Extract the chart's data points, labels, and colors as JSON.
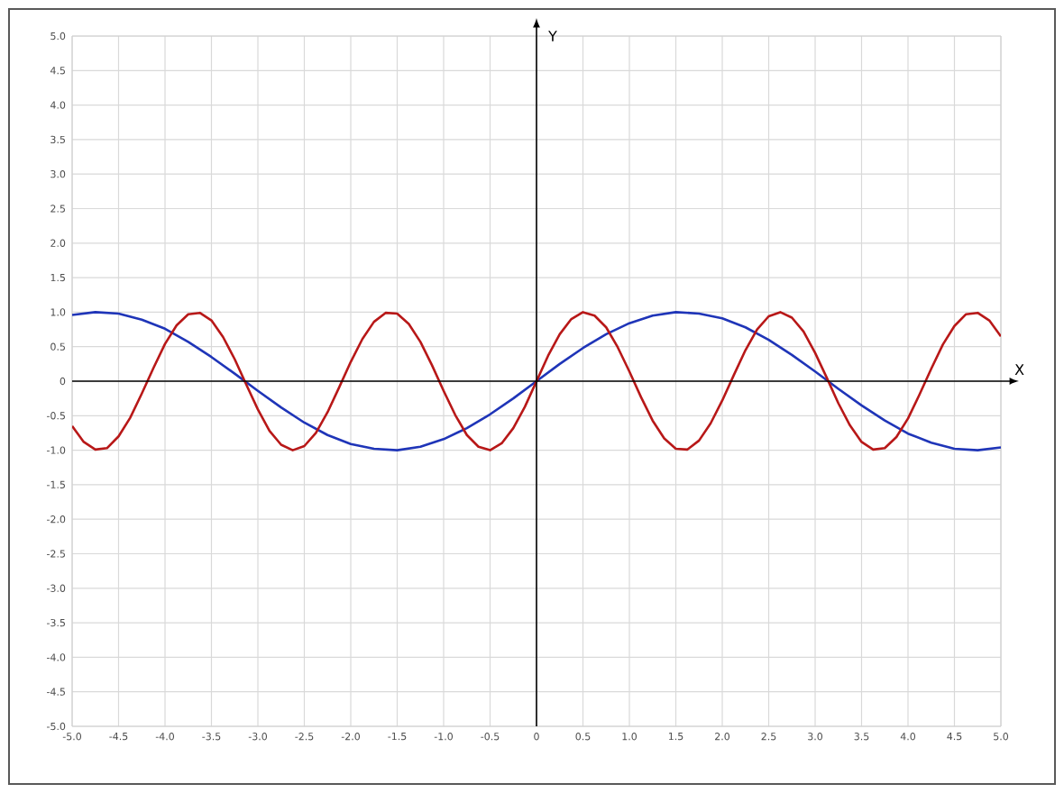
{
  "chart_data": {
    "type": "line",
    "xlabel": "X",
    "ylabel": "Y",
    "grid": true,
    "xlim": [
      -5,
      5
    ],
    "ylim": [
      -5,
      5
    ],
    "xticks": [
      {
        "value": -5,
        "label": "-5.0"
      },
      -4.5,
      {
        "value": -4,
        "label": "-4.0"
      },
      -3.5,
      {
        "value": -3,
        "label": "-3.0"
      },
      -2.5,
      {
        "value": -2,
        "label": "-2.0"
      },
      -1.5,
      {
        "value": -1,
        "label": "-1.0"
      },
      -0.5,
      0,
      0.5,
      {
        "value": 1,
        "label": "1.0"
      },
      1.5,
      {
        "value": 2,
        "label": "2.0"
      },
      2.5,
      {
        "value": 3,
        "label": "3.0"
      },
      3.5,
      {
        "value": 4,
        "label": "4.0"
      },
      4.5,
      {
        "value": 5,
        "label": "5.0"
      }
    ],
    "yticks": [
      {
        "value": -5,
        "label": "-5.0"
      },
      -4.5,
      {
        "value": -4,
        "label": "-4.0"
      },
      -3.5,
      {
        "value": -3,
        "label": "-3.0"
      },
      -2.5,
      {
        "value": -2,
        "label": "-2.0"
      },
      -1.5,
      {
        "value": -1,
        "label": "-1.0"
      },
      -0.5,
      0,
      0.5,
      {
        "value": 1,
        "label": "1.0"
      },
      1.5,
      {
        "value": 2,
        "label": "2.0"
      },
      2.5,
      {
        "value": 3,
        "label": "3.0"
      },
      3.5,
      {
        "value": 4,
        "label": "4.0"
      },
      4.5,
      {
        "value": 5,
        "label": "5.0"
      }
    ],
    "series": [
      {
        "color": "#1f35b8",
        "x": [
          -5,
          -4.75,
          -4.5,
          -4.25,
          -4,
          -3.75,
          -3.5,
          -3.25,
          -3,
          -2.75,
          -2.5,
          -2.25,
          -2,
          -1.75,
          -1.5,
          -1.25,
          -1,
          -0.75,
          -0.5,
          -0.25,
          0,
          0.25,
          0.5,
          0.75,
          1,
          1.25,
          1.5,
          1.75,
          2,
          2.25,
          2.5,
          2.75,
          3,
          3.25,
          3.5,
          3.75,
          4,
          4.25,
          4.5,
          4.75,
          5
        ],
        "values": [
          0.96,
          1.0,
          0.98,
          0.89,
          0.76,
          0.57,
          0.35,
          0.11,
          -0.14,
          -0.38,
          -0.6,
          -0.78,
          -0.91,
          -0.98,
          -1.0,
          -0.95,
          -0.84,
          -0.68,
          -0.48,
          -0.25,
          0,
          0.25,
          0.48,
          0.68,
          0.84,
          0.95,
          1.0,
          0.98,
          0.91,
          0.78,
          0.6,
          0.38,
          0.14,
          -0.11,
          -0.35,
          -0.57,
          -0.76,
          -0.89,
          -0.98,
          -1.0,
          -0.96
        ]
      },
      {
        "color": "#b81818",
        "x": [
          -5,
          -4.875,
          -4.75,
          -4.625,
          -4.5,
          -4.375,
          -4.25,
          -4.125,
          -4,
          -3.875,
          -3.75,
          -3.625,
          -3.5,
          -3.375,
          -3.25,
          -3.125,
          -3,
          -2.875,
          -2.75,
          -2.625,
          -2.5,
          -2.375,
          -2.25,
          -2.125,
          -2,
          -1.875,
          -1.75,
          -1.625,
          -1.5,
          -1.375,
          -1.25,
          -1.125,
          -1,
          -0.875,
          -0.75,
          -0.625,
          -0.5,
          -0.375,
          -0.25,
          -0.125,
          0,
          0.125,
          0.25,
          0.375,
          0.5,
          0.625,
          0.75,
          0.875,
          1,
          1.125,
          1.25,
          1.375,
          1.5,
          1.625,
          1.75,
          1.875,
          2,
          2.125,
          2.25,
          2.375,
          2.5,
          2.625,
          2.75,
          2.875,
          3,
          3.125,
          3.25,
          3.375,
          3.5,
          3.625,
          3.75,
          3.875,
          4,
          4.125,
          4.25,
          4.375,
          4.5,
          4.625,
          4.75,
          4.875,
          5
        ],
        "values": [
          -0.65,
          -0.88,
          -0.99,
          -0.97,
          -0.8,
          -0.53,
          -0.18,
          0.19,
          0.54,
          0.81,
          0.97,
          0.99,
          0.88,
          0.64,
          0.32,
          -0.05,
          -0.41,
          -0.72,
          -0.92,
          -1.0,
          -0.94,
          -0.75,
          -0.45,
          -0.09,
          0.28,
          0.61,
          0.86,
          0.99,
          0.98,
          0.83,
          0.57,
          0.23,
          -0.14,
          -0.49,
          -0.78,
          -0.95,
          -1.0,
          -0.9,
          -0.68,
          -0.37,
          0,
          0.37,
          0.68,
          0.9,
          1.0,
          0.95,
          0.78,
          0.49,
          0.14,
          -0.23,
          -0.57,
          -0.83,
          -0.98,
          -0.99,
          -0.86,
          -0.61,
          -0.28,
          0.09,
          0.45,
          0.75,
          0.94,
          1.0,
          0.92,
          0.72,
          0.41,
          0.05,
          -0.32,
          -0.64,
          -0.88,
          -0.99,
          -0.97,
          -0.81,
          -0.54,
          -0.19,
          0.18,
          0.53,
          0.8,
          0.97,
          0.99,
          0.88,
          0.65
        ]
      }
    ]
  }
}
